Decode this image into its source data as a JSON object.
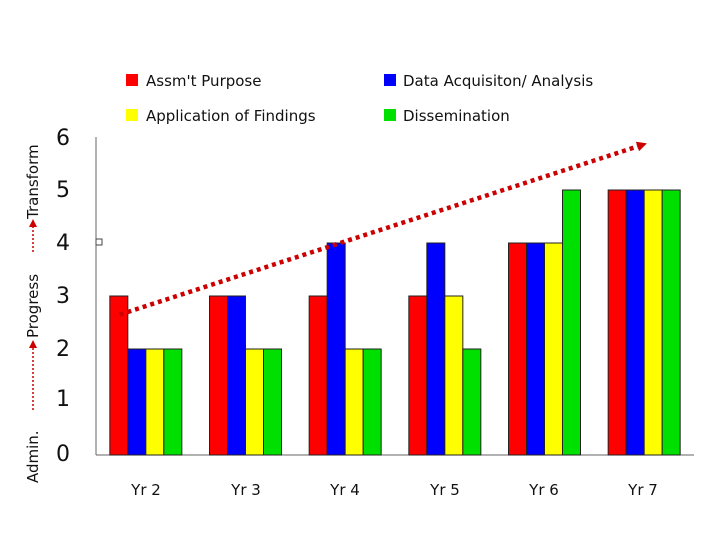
{
  "chart_data": {
    "type": "bar",
    "categories": [
      "Yr 2",
      "Yr 3",
      "Yr 4",
      "Yr 5",
      "Yr 6",
      "Yr 7"
    ],
    "series": [
      {
        "name": "Assm't Purpose",
        "color": "#ff0000",
        "values": [
          3,
          3,
          3,
          3,
          4,
          5
        ]
      },
      {
        "name": "Data Acquisiton/ Analysis",
        "color": "#0000ff",
        "values": [
          2,
          3,
          4,
          4,
          4,
          5
        ]
      },
      {
        "name": "Application of Findings",
        "color": "#ffff00",
        "values": [
          2,
          2,
          2,
          3,
          4,
          5
        ]
      },
      {
        "name": "Dissemination",
        "color": "#00e000",
        "values": [
          2,
          2,
          2,
          2,
          5,
          5
        ]
      }
    ],
    "ylim": [
      0,
      6
    ],
    "yticks": [
      "0",
      "1",
      "2",
      "3",
      "4",
      "5",
      "6"
    ],
    "grid": false,
    "legend": "top",
    "trend_arrow": {
      "from": {
        "x": "Yr 2",
        "y": 2.65
      },
      "to": {
        "x": "Yr 7",
        "y": 5.85
      },
      "color": "#cc0000",
      "style": "dotted"
    },
    "side_axis_labels": [
      "Admin.",
      "Progress",
      "Transform"
    ]
  }
}
